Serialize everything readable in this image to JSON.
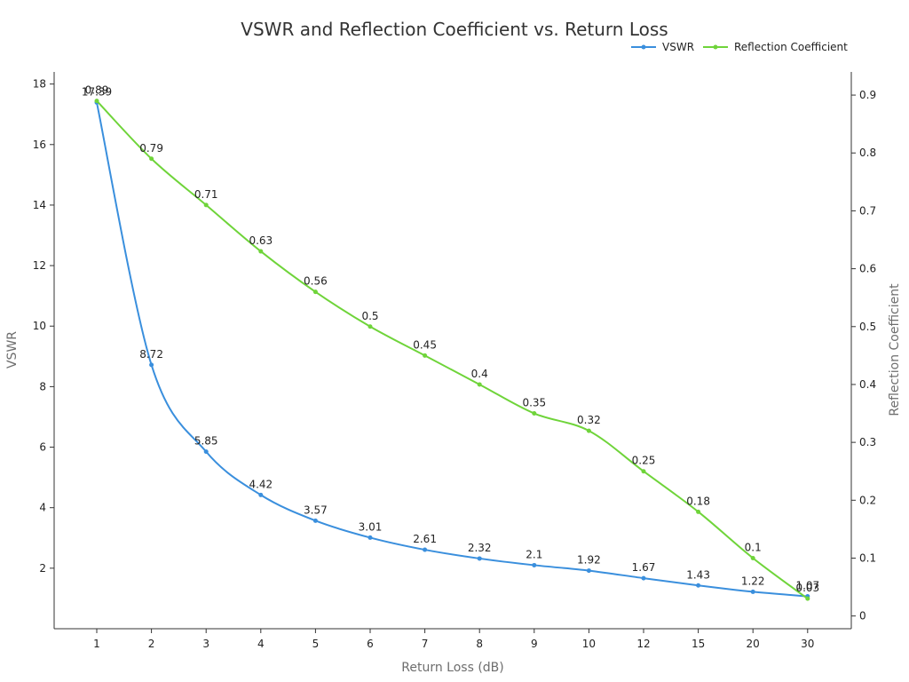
{
  "chart_data": {
    "type": "line",
    "title": "VSWR and Reflection Coefficient vs. Return Loss",
    "xlabel": "Return Loss (dB)",
    "ylabel": "VSWR",
    "y2label": "Reflection Coefficient",
    "categories": [
      "1",
      "2",
      "3",
      "4",
      "5",
      "6",
      "7",
      "8",
      "9",
      "10",
      "12",
      "15",
      "20",
      "30"
    ],
    "ylim": [
      0,
      18.4
    ],
    "y2lim": [
      -0.022,
      0.94
    ],
    "yticks": [
      2,
      4,
      6,
      8,
      10,
      12,
      14,
      16,
      18
    ],
    "y2ticks": [
      0,
      0.1,
      0.2,
      0.3,
      0.4,
      0.5,
      0.6,
      0.7,
      0.8,
      0.9
    ],
    "legend_position": "top-right",
    "grid": false,
    "series": [
      {
        "name": "VSWR",
        "axis": "left",
        "color": "#3a8fdd",
        "values": [
          17.39,
          8.72,
          5.85,
          4.42,
          3.57,
          3.01,
          2.61,
          2.32,
          2.1,
          1.92,
          1.67,
          1.43,
          1.22,
          1.07
        ]
      },
      {
        "name": "Reflection Coefficient",
        "axis": "right",
        "color": "#6fd43a",
        "values": [
          0.89,
          0.79,
          0.71,
          0.63,
          0.56,
          0.5,
          0.45,
          0.4,
          0.35,
          0.32,
          0.25,
          0.18,
          0.1,
          0.03
        ]
      }
    ]
  }
}
